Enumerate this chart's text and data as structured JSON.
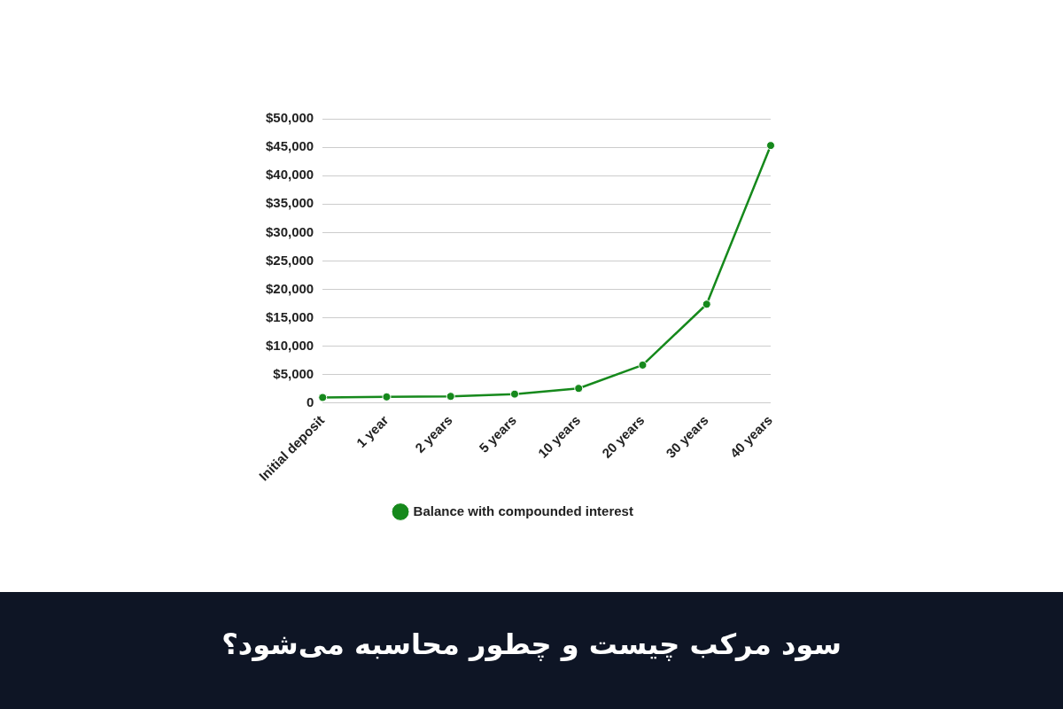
{
  "chart_data": {
    "type": "line",
    "title": "سود مرکب چیست و چطور محاسبه می‌شود؟",
    "categories": [
      "Initial deposit",
      "1 year",
      "2 years",
      "5 years",
      "10 years",
      "20 years",
      "30 years",
      "40 years"
    ],
    "series": [
      {
        "name": "Balance with compounded interest",
        "color": "#16891c",
        "values": [
          1000,
          1100,
          1200,
          1600,
          2600,
          6700,
          17400,
          45300
        ]
      }
    ],
    "ylim": [
      0,
      50000
    ],
    "yticks": [
      0,
      {
        "value": 5000,
        "label": "$5,000"
      },
      {
        "value": 10000,
        "label": "$10,000"
      },
      {
        "value": 15000,
        "label": "$15,000"
      },
      {
        "value": 20000,
        "label": "$20,000"
      },
      {
        "value": 25000,
        "label": "$25,000"
      },
      {
        "value": 30000,
        "label": "$30,000"
      },
      {
        "value": 35000,
        "label": "$35,000"
      },
      {
        "value": 40000,
        "label": "$40,000"
      },
      {
        "value": 45000,
        "label": "$45,000"
      },
      {
        "value": 50000,
        "label": "$50,000"
      }
    ],
    "grid": "y",
    "legend": "bottom",
    "marker": "circle",
    "line_style": "solid"
  }
}
